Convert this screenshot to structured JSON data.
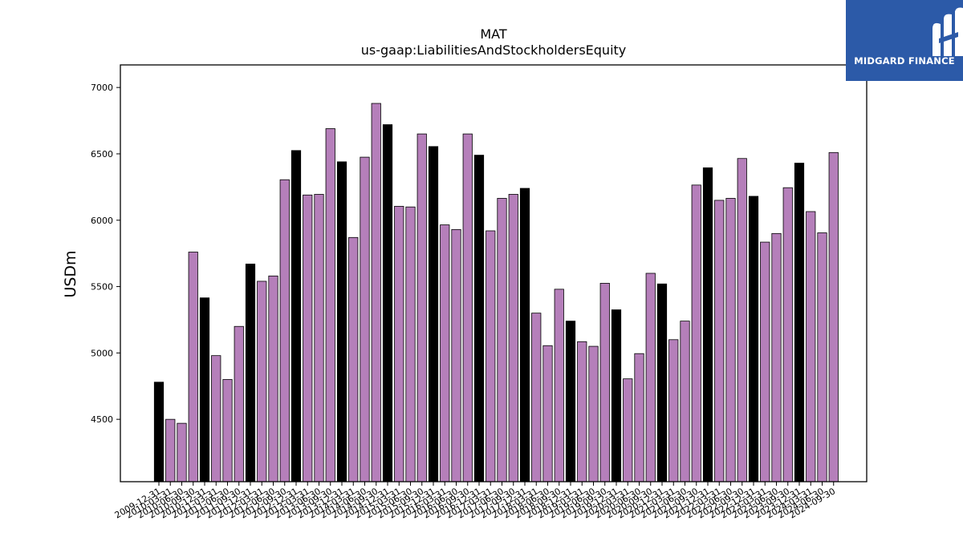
{
  "chart_data": {
    "type": "bar",
    "title": "MAT",
    "subtitle": "us-gaap:LiabilitiesAndStockholdersEquity",
    "xlabel": "",
    "ylabel": "USDm",
    "ylim": [
      4030,
      7170
    ],
    "yticks": [
      4500,
      5000,
      5500,
      6000,
      6500,
      7000
    ],
    "grid": false,
    "colors": {
      "fy": "#000000",
      "quarter": "#b57fba",
      "edge": "#000000"
    },
    "categories": [
      "2009-12-31",
      "2010-03-31",
      "2010-06-30",
      "2010-09-30",
      "2010-12-31",
      "2011-03-31",
      "2011-06-30",
      "2011-09-30",
      "2011-12-31",
      "2012-03-31",
      "2012-06-30",
      "2012-09-30",
      "2012-12-31",
      "2013-03-31",
      "2013-06-30",
      "2013-09-30",
      "2013-12-31",
      "2014-03-31",
      "2014-06-30",
      "2014-09-30",
      "2014-12-31",
      "2015-03-31",
      "2015-06-30",
      "2015-09-30",
      "2015-12-31",
      "2016-03-31",
      "2016-06-30",
      "2016-09-30",
      "2016-12-31",
      "2017-03-31",
      "2017-06-30",
      "2017-09-30",
      "2017-12-31",
      "2018-03-31",
      "2018-06-30",
      "2018-09-30",
      "2018-12-31",
      "2019-03-31",
      "2019-06-30",
      "2019-09-30",
      "2019-12-31",
      "2020-03-31",
      "2020-06-30",
      "2020-09-30",
      "2020-12-31",
      "2021-03-31",
      "2021-06-30",
      "2021-09-30",
      "2021-12-31",
      "2022-03-31",
      "2022-06-30",
      "2022-09-30",
      "2022-12-31",
      "2023-03-31",
      "2023-06-30",
      "2023-09-30",
      "2023-12-31",
      "2024-03-31",
      "2024-06-30",
      "2024-09-30"
    ],
    "values": [
      4780,
      4500,
      4470,
      5760,
      5415,
      4980,
      4800,
      5200,
      5670,
      5540,
      5580,
      6305,
      6525,
      6190,
      6195,
      6690,
      6440,
      5870,
      6475,
      6880,
      6720,
      6105,
      6100,
      6650,
      6555,
      5965,
      5930,
      6650,
      6490,
      5920,
      6165,
      6195,
      6240,
      5300,
      5055,
      5480,
      5240,
      5085,
      5050,
      5525,
      5325,
      4805,
      4995,
      5600,
      5520,
      5100,
      5240,
      6265,
      6395,
      6150,
      6165,
      6465,
      6180,
      5835,
      5900,
      6245,
      6430,
      6065,
      5905,
      6510
    ],
    "fiscal_year_end": [
      true,
      false,
      false,
      false,
      true,
      false,
      false,
      false,
      true,
      false,
      false,
      false,
      true,
      false,
      false,
      false,
      true,
      false,
      false,
      false,
      true,
      false,
      false,
      false,
      true,
      false,
      false,
      false,
      true,
      false,
      false,
      false,
      true,
      false,
      false,
      false,
      true,
      false,
      false,
      false,
      true,
      false,
      false,
      false,
      true,
      false,
      false,
      false,
      true,
      false,
      false,
      false,
      true,
      false,
      false,
      false,
      true,
      false,
      false,
      false
    ]
  },
  "logo": {
    "text": "MIDGARD FINANCE",
    "icon": "midgard-logo-icon"
  }
}
